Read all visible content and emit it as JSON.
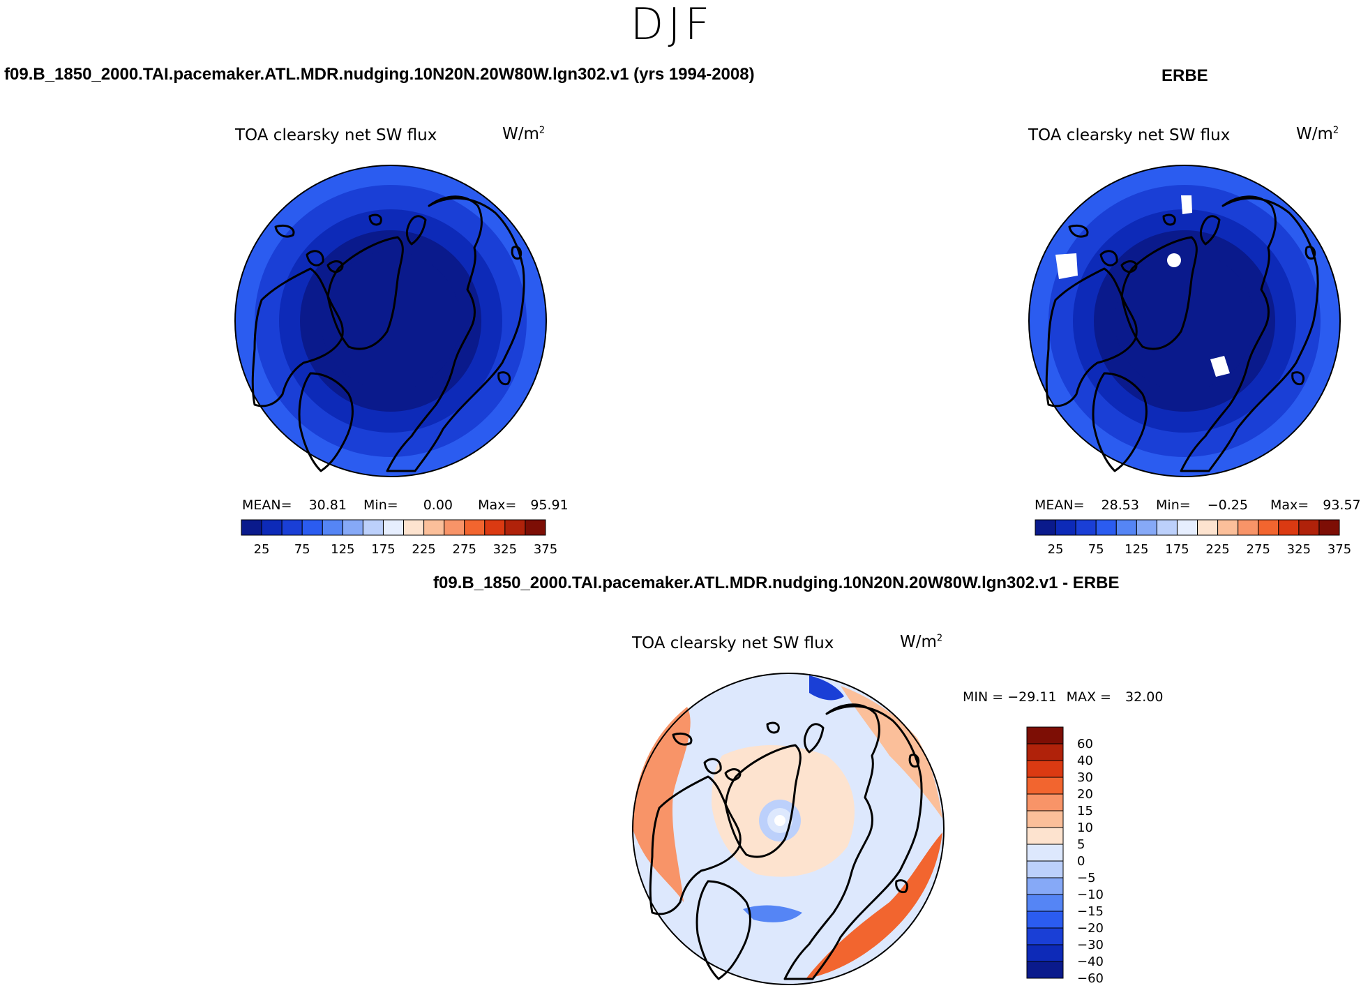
{
  "figure": {
    "title": "DJF",
    "left_case": "f09.B_1850_2000.TAI.pacemaker.ATL.MDR.nudging.10N20N.20W80W.lgn302.v1 (yrs 1994-2008)",
    "right_case": "ERBE",
    "diff_case": "f09.B_1850_2000.TAI.pacemaker.ATL.MDR.nudging.10N20N.20W80W.lgn302.v1 - ERBE"
  },
  "colors": {
    "abs_scale": [
      "#0a1a8c",
      "#0d2ab8",
      "#1a3fd6",
      "#2b5cf0",
      "#5585f5",
      "#86a9f7",
      "#bcd0fb",
      "#e6eefe",
      "#fde3cf",
      "#fbbf9a",
      "#f89468",
      "#f2652f",
      "#db3a12",
      "#b0220a",
      "#7d0e05"
    ],
    "diff_scale": [
      "#0a1a8c",
      "#0d2ab8",
      "#1a3fd6",
      "#2b5cf0",
      "#5585f5",
      "#86a9f7",
      "#bcd0fb",
      "#dde8fd",
      "#fde3cf",
      "#fbbf9a",
      "#f89468",
      "#f2652f",
      "#db3a12",
      "#b0220a",
      "#7d0e05"
    ],
    "land_outline": "#000000"
  },
  "chart_data": [
    {
      "type": "heatmap",
      "projection": "north-polar-stereographic",
      "title": "TOA clearsky net SW flux",
      "units": "W/m",
      "units_sup": "2",
      "stats": {
        "mean_label": "MEAN=",
        "mean": "30.81",
        "min_label": "Min=",
        "min": "0.00",
        "max_label": "Max=",
        "max": "95.91"
      },
      "colorbar": {
        "orientation": "horizontal",
        "levels": [
          25,
          75,
          125,
          175,
          225,
          275,
          325,
          375
        ]
      },
      "field_description": "values increase from ~0 near pole to ~95 at 45N"
    },
    {
      "type": "heatmap",
      "projection": "north-polar-stereographic",
      "title": "TOA clearsky net SW flux",
      "units": "W/m",
      "units_sup": "2",
      "stats": {
        "mean_label": "MEAN=",
        "mean": "28.53",
        "min_label": "Min=",
        "min": "−0.25",
        "max_label": "Max=",
        "max": "93.57"
      },
      "colorbar": {
        "orientation": "horizontal",
        "levels": [
          25,
          75,
          125,
          175,
          225,
          275,
          325,
          375
        ]
      }
    },
    {
      "type": "heatmap",
      "projection": "north-polar-stereographic",
      "title": "TOA clearsky net SW flux",
      "units": "W/m",
      "units_sup": "2",
      "stats": {
        "min_label": "MIN =",
        "min": "−29.11",
        "max_label": "MAX =",
        "max": "32.00"
      },
      "colorbar": {
        "orientation": "vertical",
        "levels": [
          "60",
          "40",
          "30",
          "20",
          "15",
          "10",
          "5",
          "0",
          "−5",
          "−10",
          "−15",
          "−20",
          "−30",
          "−40",
          "−60"
        ]
      }
    }
  ]
}
